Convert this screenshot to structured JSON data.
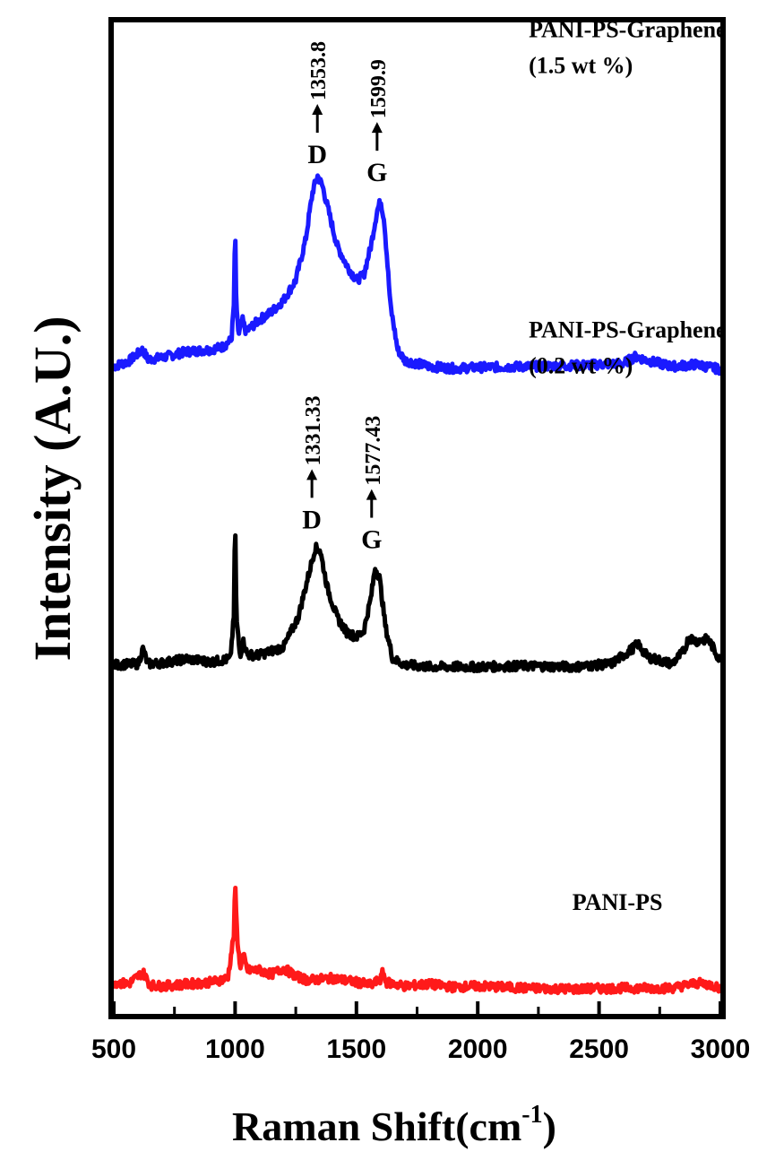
{
  "chart_data": {
    "type": "line",
    "xlabel": "Raman Shift(cm",
    "xlabel_sup": "-1",
    "xlabel_close": ")",
    "ylabel": "Intensity (A.U.)",
    "xlim": [
      500,
      3000
    ],
    "ylim": [
      0,
      100
    ],
    "x_ticks": [
      500,
      1000,
      1500,
      2000,
      2500,
      3000
    ],
    "x_tick_labels": [
      "500",
      "1000",
      "1500",
      "2000",
      "2500",
      "3000"
    ],
    "grid": false,
    "series": [
      {
        "label_line1": "PANI-PS-Graphene",
        "label_line2": "(1.5 wt %)",
        "color": "#1a1aff",
        "baseline": 65.0,
        "points": [
          [
            500,
            65.3
          ],
          [
            560,
            65.8
          ],
          [
            620,
            67.0
          ],
          [
            640,
            66.0
          ],
          [
            700,
            66.2
          ],
          [
            800,
            66.8
          ],
          [
            900,
            67.0
          ],
          [
            950,
            67.3
          ],
          [
            985,
            68.0
          ],
          [
            995,
            71.5
          ],
          [
            1000,
            79.5
          ],
          [
            1005,
            71.0
          ],
          [
            1015,
            68.5
          ],
          [
            1030,
            70.0
          ],
          [
            1045,
            68.8
          ],
          [
            1100,
            70.0
          ],
          [
            1150,
            70.8
          ],
          [
            1200,
            72.0
          ],
          [
            1250,
            74.0
          ],
          [
            1290,
            78.0
          ],
          [
            1320,
            83.0
          ],
          [
            1340,
            84.5
          ],
          [
            1360,
            83.5
          ],
          [
            1390,
            80.5
          ],
          [
            1420,
            77.5
          ],
          [
            1460,
            75.5
          ],
          [
            1500,
            74.0
          ],
          [
            1530,
            74.5
          ],
          [
            1560,
            77.5
          ],
          [
            1585,
            81.0
          ],
          [
            1600,
            82.0
          ],
          [
            1615,
            80.0
          ],
          [
            1640,
            71.5
          ],
          [
            1670,
            67.0
          ],
          [
            1700,
            65.9
          ],
          [
            1800,
            65.3
          ],
          [
            1900,
            65.1
          ],
          [
            2000,
            65.2
          ],
          [
            2200,
            65.3
          ],
          [
            2400,
            65.4
          ],
          [
            2600,
            65.6
          ],
          [
            2650,
            66.3
          ],
          [
            2700,
            65.9
          ],
          [
            2800,
            65.3
          ],
          [
            2900,
            65.5
          ],
          [
            3000,
            65.0
          ]
        ]
      },
      {
        "label_line1": "PANI-PS-Graphene",
        "label_line2": "(0.2 wt %)",
        "color": "#000000",
        "baseline": 35.0,
        "points": [
          [
            500,
            35.2
          ],
          [
            600,
            35.3
          ],
          [
            620,
            36.8
          ],
          [
            640,
            35.3
          ],
          [
            700,
            35.4
          ],
          [
            800,
            35.8
          ],
          [
            900,
            35.5
          ],
          [
            980,
            35.8
          ],
          [
            995,
            40.0
          ],
          [
            1000,
            50.5
          ],
          [
            1005,
            40.0
          ],
          [
            1020,
            36.2
          ],
          [
            1035,
            37.6
          ],
          [
            1050,
            36.2
          ],
          [
            1100,
            36.2
          ],
          [
            1200,
            37.0
          ],
          [
            1260,
            40.0
          ],
          [
            1300,
            44.0
          ],
          [
            1330,
            47.0
          ],
          [
            1350,
            46.8
          ],
          [
            1380,
            43.0
          ],
          [
            1420,
            40.0
          ],
          [
            1460,
            38.5
          ],
          [
            1500,
            38.0
          ],
          [
            1530,
            38.6
          ],
          [
            1560,
            42.0
          ],
          [
            1577,
            45.0
          ],
          [
            1595,
            44.0
          ],
          [
            1620,
            39.0
          ],
          [
            1650,
            35.8
          ],
          [
            1700,
            35.2
          ],
          [
            1800,
            35.0
          ],
          [
            2000,
            35.0
          ],
          [
            2200,
            35.1
          ],
          [
            2400,
            35.0
          ],
          [
            2550,
            35.3
          ],
          [
            2620,
            36.5
          ],
          [
            2660,
            37.3
          ],
          [
            2700,
            36.0
          ],
          [
            2800,
            35.3
          ],
          [
            2850,
            36.6
          ],
          [
            2870,
            38.0
          ],
          [
            2900,
            37.6
          ],
          [
            2950,
            37.8
          ],
          [
            3000,
            35.6
          ]
        ]
      },
      {
        "label_line1": "PANI-PS",
        "label_line2": "",
        "color": "#ff1a1a",
        "baseline": 3.0,
        "points": [
          [
            500,
            3.2
          ],
          [
            560,
            3.0
          ],
          [
            620,
            4.2
          ],
          [
            650,
            2.9
          ],
          [
            700,
            2.8
          ],
          [
            800,
            3.0
          ],
          [
            900,
            3.2
          ],
          [
            970,
            3.6
          ],
          [
            995,
            8.0
          ],
          [
            1000,
            13.0
          ],
          [
            1008,
            8.0
          ],
          [
            1020,
            4.8
          ],
          [
            1035,
            5.8
          ],
          [
            1050,
            4.4
          ],
          [
            1100,
            4.4
          ],
          [
            1150,
            4.0
          ],
          [
            1200,
            4.6
          ],
          [
            1250,
            3.8
          ],
          [
            1300,
            3.4
          ],
          [
            1400,
            3.6
          ],
          [
            1500,
            3.2
          ],
          [
            1560,
            2.9
          ],
          [
            1600,
            3.5
          ],
          [
            1610,
            4.3
          ],
          [
            1620,
            3.2
          ],
          [
            1700,
            2.8
          ],
          [
            1800,
            3.0
          ],
          [
            1900,
            2.7
          ],
          [
            2000,
            2.8
          ],
          [
            2200,
            2.6
          ],
          [
            2400,
            2.5
          ],
          [
            2600,
            2.6
          ],
          [
            2800,
            2.6
          ],
          [
            2900,
            3.1
          ],
          [
            2950,
            3.0
          ],
          [
            3000,
            2.6
          ]
        ]
      }
    ],
    "annotations": [
      {
        "letter": "D",
        "value": "1353.8",
        "x": 1353.8,
        "series": 0
      },
      {
        "letter": "G",
        "value": "1599.9",
        "x": 1599.9,
        "series": 0
      },
      {
        "letter": "D",
        "value": "1331.33",
        "x": 1331.33,
        "series": 1
      },
      {
        "letter": "G",
        "value": "1577.43",
        "x": 1577.43,
        "series": 1
      }
    ]
  }
}
